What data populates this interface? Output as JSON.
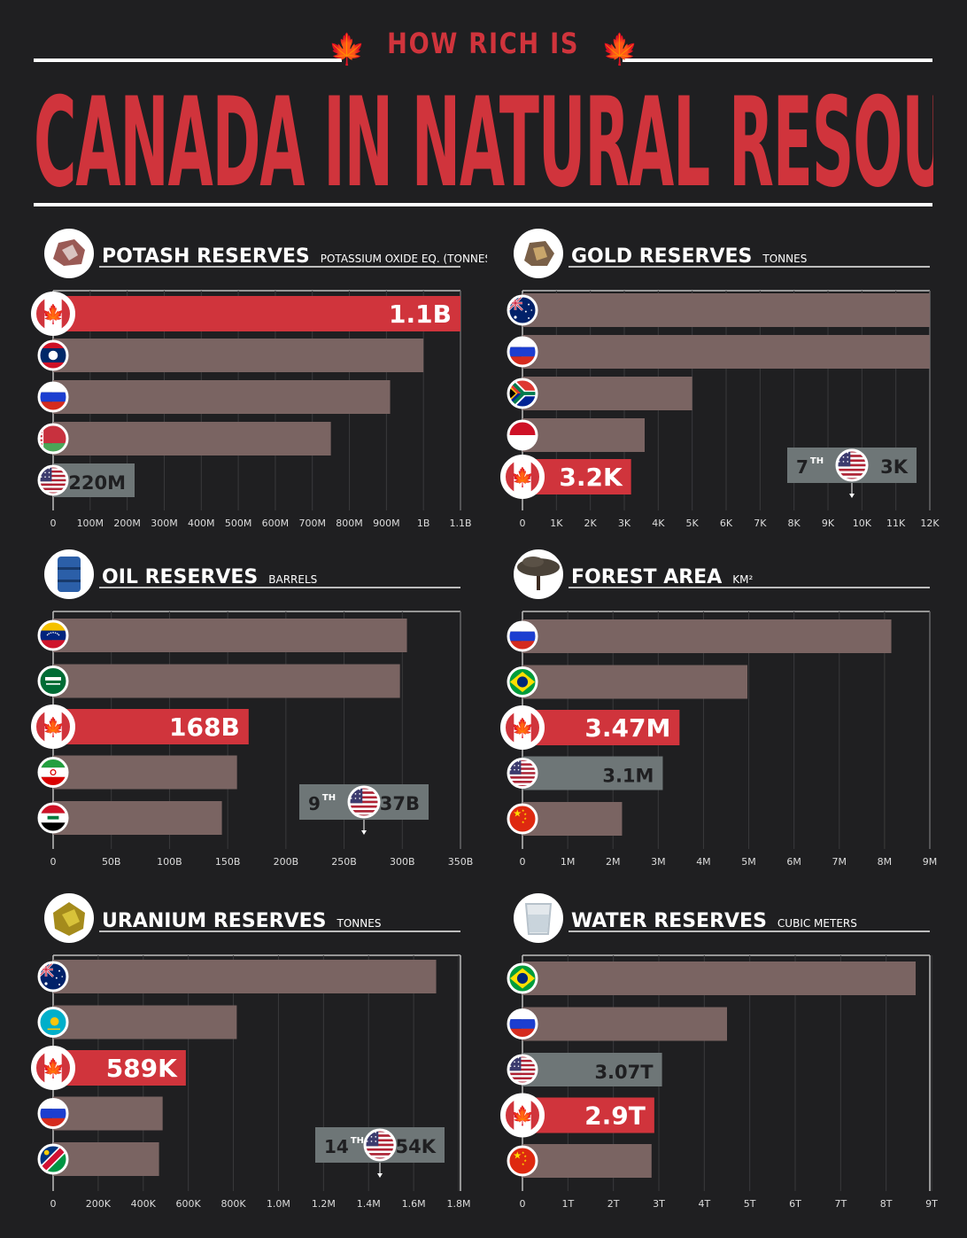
{
  "header": {
    "kicker": "HOW RICH IS",
    "title": "CANADA IN NATURAL RESOURCES?"
  },
  "colors": {
    "background": "#1f1f21",
    "canada_red": "#d0343c",
    "bar": "#7a6462",
    "usa_bar": "#6e7677",
    "grid": "#3a3a3c",
    "text": "#ffffff"
  },
  "chart_data": [
    {
      "type": "bar",
      "title": "POTASH RESERVES",
      "unit": "POTASSIUM OXIDE EQ. (TONNES)",
      "icon": "potash-rock-icon",
      "xlim": [
        0,
        1100000000
      ],
      "ticks": [
        "0",
        "100M",
        "200M",
        "300M",
        "400M",
        "500M",
        "600M",
        "700M",
        "800M",
        "900M",
        "1B",
        "1.1B"
      ],
      "bars": [
        {
          "country": "Canada",
          "flag": "canada-flag-icon",
          "value": 1100000000,
          "label": "1.1B",
          "highlight": "canada"
        },
        {
          "country": "Laos",
          "flag": "laos-flag-icon",
          "value": 1000000000,
          "label": ""
        },
        {
          "country": "Russia",
          "flag": "russia-flag-icon",
          "value": 910000000,
          "label": ""
        },
        {
          "country": "Belarus",
          "flag": "belarus-flag-icon",
          "value": 750000000,
          "label": ""
        },
        {
          "country": "USA",
          "flag": "usa-flag-icon",
          "value": 220000000,
          "label": "220M",
          "highlight": "usa"
        }
      ]
    },
    {
      "type": "bar",
      "title": "GOLD RESERVES",
      "unit": "TONNES",
      "icon": "gold-nugget-icon",
      "xlim": [
        0,
        12000
      ],
      "ticks": [
        "0",
        "1K",
        "2K",
        "3K",
        "4K",
        "5K",
        "6K",
        "7K",
        "8K",
        "9K",
        "10K",
        "11K",
        "12K"
      ],
      "bars": [
        {
          "country": "Australia",
          "flag": "australia-flag-icon",
          "value": 12000,
          "label": ""
        },
        {
          "country": "Russia",
          "flag": "russia-flag-icon",
          "value": 12000,
          "label": ""
        },
        {
          "country": "South Africa",
          "flag": "south-africa-flag-icon",
          "value": 5000,
          "label": ""
        },
        {
          "country": "Indonesia",
          "flag": "indonesia-flag-icon",
          "value": 3600,
          "label": ""
        },
        {
          "country": "Canada",
          "flag": "canada-flag-icon",
          "value": 3200,
          "label": "3.2K",
          "highlight": "canada"
        }
      ],
      "usa_callout": {
        "rank": "7",
        "rank_suffix": "TH",
        "label": "3K",
        "value": 3000
      }
    },
    {
      "type": "bar",
      "title": "OIL RESERVES",
      "unit": "BARRELS",
      "icon": "oil-barrel-icon",
      "xlim": [
        0,
        350000000000
      ],
      "ticks": [
        "0",
        "50B",
        "100B",
        "150B",
        "200B",
        "250B",
        "300B",
        "350B"
      ],
      "bars": [
        {
          "country": "Venezuela",
          "flag": "venezuela-flag-icon",
          "value": 304000000000,
          "label": ""
        },
        {
          "country": "Saudi Arabia",
          "flag": "saudi-arabia-flag-icon",
          "value": 298000000000,
          "label": ""
        },
        {
          "country": "Canada",
          "flag": "canada-flag-icon",
          "value": 168000000000,
          "label": "168B",
          "highlight": "canada"
        },
        {
          "country": "Iran",
          "flag": "iran-flag-icon",
          "value": 158000000000,
          "label": ""
        },
        {
          "country": "Iraq",
          "flag": "iraq-flag-icon",
          "value": 145000000000,
          "label": ""
        }
      ],
      "usa_callout": {
        "rank": "9",
        "rank_suffix": "TH",
        "label": "37B",
        "value": 37000000000
      }
    },
    {
      "type": "bar",
      "title": "FOREST AREA",
      "unit": "KM²",
      "icon": "tree-icon",
      "xlim": [
        0,
        9000000
      ],
      "ticks": [
        "0",
        "1M",
        "2M",
        "3M",
        "4M",
        "5M",
        "6M",
        "7M",
        "8M",
        "9M"
      ],
      "bars": [
        {
          "country": "Russia",
          "flag": "russia-flag-icon",
          "value": 8150000,
          "label": ""
        },
        {
          "country": "Brazil",
          "flag": "brazil-flag-icon",
          "value": 4970000,
          "label": ""
        },
        {
          "country": "Canada",
          "flag": "canada-flag-icon",
          "value": 3470000,
          "label": "3.47M",
          "highlight": "canada"
        },
        {
          "country": "USA",
          "flag": "usa-flag-icon",
          "value": 3100000,
          "label": "3.1M",
          "highlight": "usa"
        },
        {
          "country": "China",
          "flag": "china-flag-icon",
          "value": 2200000,
          "label": ""
        }
      ]
    },
    {
      "type": "bar",
      "title": "URANIUM RESERVES",
      "unit": "TONNES",
      "icon": "uranium-ore-icon",
      "xlim": [
        0,
        1800000
      ],
      "ticks": [
        "0",
        "200K",
        "400K",
        "600K",
        "800K",
        "1.0M",
        "1.2M",
        "1.4M",
        "1.6M",
        "1.8M"
      ],
      "bars": [
        {
          "country": "Australia",
          "flag": "australia-flag-icon",
          "value": 1700000,
          "label": ""
        },
        {
          "country": "Kazakhstan",
          "flag": "kazakhstan-flag-icon",
          "value": 815000,
          "label": ""
        },
        {
          "country": "Canada",
          "flag": "canada-flag-icon",
          "value": 589000,
          "label": "589K",
          "highlight": "canada"
        },
        {
          "country": "Russia",
          "flag": "russia-flag-icon",
          "value": 486000,
          "label": ""
        },
        {
          "country": "Namibia",
          "flag": "namibia-flag-icon",
          "value": 470000,
          "label": ""
        }
      ],
      "usa_callout": {
        "rank": "14",
        "rank_suffix": "TH",
        "label": "54K",
        "value": 54000
      }
    },
    {
      "type": "bar",
      "title": "WATER RESERVES",
      "unit": "CUBIC METERS",
      "icon": "water-glass-icon",
      "xlim": [
        0,
        9000000000000
      ],
      "ticks": [
        "0",
        "1T",
        "2T",
        "3T",
        "4T",
        "5T",
        "6T",
        "7T",
        "8T",
        "9T"
      ],
      "bars": [
        {
          "country": "Brazil",
          "flag": "brazil-flag-icon",
          "value": 8650000000000,
          "label": ""
        },
        {
          "country": "Russia",
          "flag": "russia-flag-icon",
          "value": 4500000000000,
          "label": ""
        },
        {
          "country": "USA",
          "flag": "usa-flag-icon",
          "value": 3070000000000,
          "label": "3.07T",
          "highlight": "usa"
        },
        {
          "country": "Canada",
          "flag": "canada-flag-icon",
          "value": 2900000000000,
          "label": "2.9T",
          "highlight": "canada"
        },
        {
          "country": "China",
          "flag": "china-flag-icon",
          "value": 2840000000000,
          "label": ""
        }
      ]
    }
  ]
}
